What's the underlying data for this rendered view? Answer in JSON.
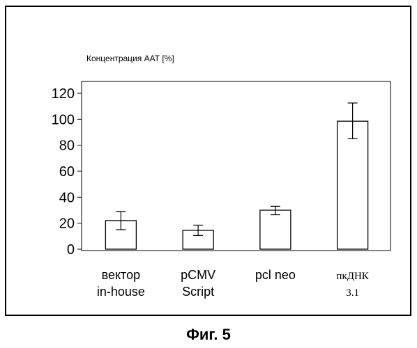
{
  "caption": "Фиг. 5",
  "chart_data": {
    "type": "bar",
    "ylabel": "Концентрация ААТ [%]",
    "ylim": [
      0,
      120
    ],
    "yticks": [
      0,
      20,
      40,
      60,
      80,
      100,
      120
    ],
    "grid": false,
    "categories": [
      [
        "вектор",
        "in-house"
      ],
      [
        "pCMV",
        "Script"
      ],
      [
        "pcl neo"
      ],
      [
        "пкДНК",
        "3.1"
      ]
    ],
    "values": [
      22,
      14.5,
      30,
      98.5
    ],
    "error_low": [
      15,
      10.5,
      26.5,
      85
    ],
    "error_high": [
      29,
      18.5,
      33,
      112.5
    ]
  }
}
